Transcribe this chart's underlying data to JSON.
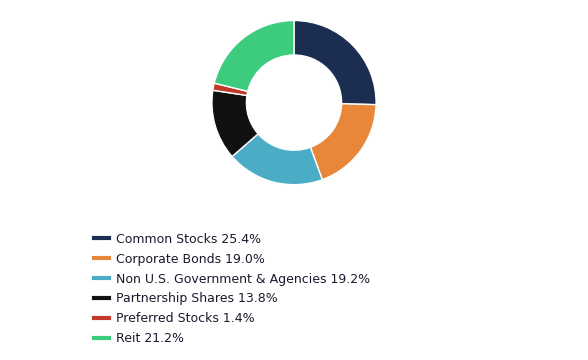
{
  "labels": [
    "Common Stocks 25.4%",
    "Corporate Bonds 19.0%",
    "Non U.S. Government & Agencies 19.2%",
    "Partnership Shares 13.8%",
    "Preferred Stocks 1.4%",
    "Reit 21.2%"
  ],
  "values": [
    25.4,
    19.0,
    19.2,
    13.8,
    1.4,
    21.2
  ],
  "colors": [
    "#1b2d50",
    "#e8873a",
    "#4bacc6",
    "#111111",
    "#c0392b",
    "#3dcc7e"
  ],
  "background_color": "#ffffff",
  "start_angle": 90,
  "figsize": [
    5.88,
    3.6
  ],
  "dpi": 100,
  "legend_fontsize": 9,
  "donut_width": 0.42
}
